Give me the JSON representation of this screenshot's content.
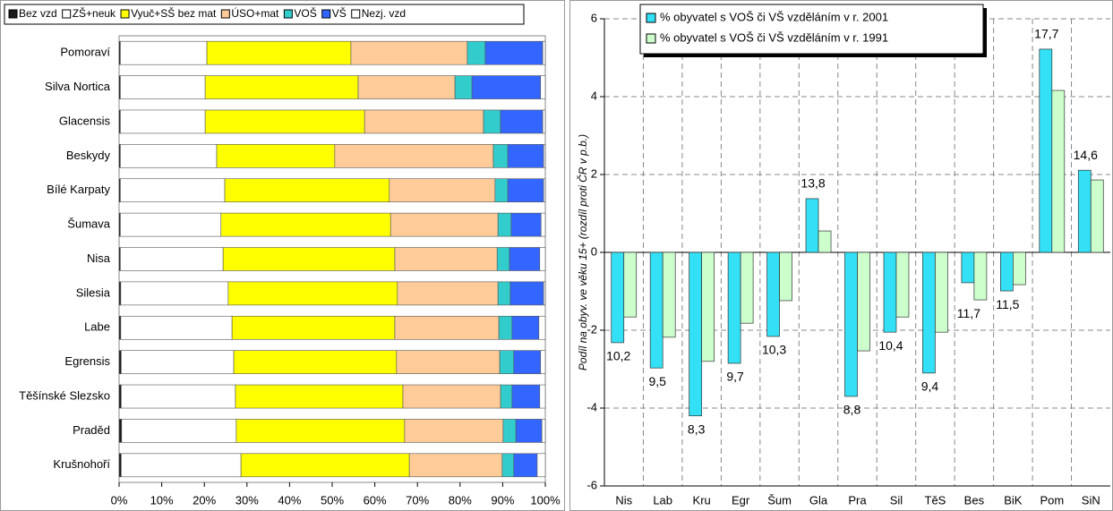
{
  "chart_data": [
    {
      "type": "barh",
      "categories": [
        "Pomoraví",
        "Silva Nortica",
        "Glacensis",
        "Beskydy",
        "Bílé Karpaty",
        "Šumava",
        "Nisa",
        "Silesia",
        "Labe",
        "Egrensis",
        "Těšínské Slezsko",
        "Praděd",
        "Krušnohoří"
      ],
      "series": [
        {
          "name": "Bez vzd",
          "color": "#1a1a1a",
          "values": [
            0.3,
            0.3,
            0.3,
            0.3,
            0.3,
            0.3,
            0.3,
            0.4,
            0.4,
            0.5,
            0.5,
            0.6,
            0.5
          ]
        },
        {
          "name": "ZŠ+neuk",
          "color": "#ffffff",
          "values": [
            20.3,
            19.9,
            19.9,
            22.6,
            24.5,
            23.6,
            24.1,
            25.2,
            26.1,
            26.4,
            26.8,
            26.9,
            28.1
          ]
        },
        {
          "name": "Vyuč+SŠ bez mat",
          "color": "#ffff00",
          "values": [
            33.8,
            35.9,
            37.4,
            27.7,
            38.6,
            39.8,
            40.3,
            39.7,
            38.2,
            38.2,
            39.3,
            39.5,
            39.5
          ]
        },
        {
          "name": "ÚSO+mat",
          "color": "#ffcc99",
          "values": [
            27.3,
            22.7,
            27.9,
            37.2,
            24.8,
            25.2,
            24.0,
            23.6,
            24.4,
            24.2,
            22.9,
            23.1,
            21.8
          ]
        },
        {
          "name": "VOŠ",
          "color": "#33cccc",
          "values": [
            4.2,
            4.0,
            4.0,
            3.4,
            3.0,
            3.1,
            2.9,
            2.9,
            3.1,
            3.3,
            2.7,
            3.0,
            2.7
          ]
        },
        {
          "name": "VŠ",
          "color": "#3366ff",
          "values": [
            13.5,
            16.1,
            9.9,
            8.4,
            8.4,
            7.0,
            7.1,
            7.8,
            6.3,
            6.3,
            6.5,
            6.1,
            5.5
          ]
        },
        {
          "name": "Nezj. vzd",
          "color": "#ffffff",
          "values": [
            0.6,
            1.1,
            0.6,
            0.4,
            0.4,
            1.0,
            1.3,
            0.4,
            1.5,
            1.1,
            1.3,
            0.8,
            1.9
          ]
        }
      ],
      "xlim": [
        0,
        100
      ],
      "xticks": [
        {
          "value": 0,
          "label": "0%"
        },
        {
          "value": 10,
          "label": "10%"
        },
        {
          "value": 20,
          "label": "20%"
        },
        {
          "value": 30,
          "label": "30%"
        },
        {
          "value": 40,
          "label": "40%"
        },
        {
          "value": 50,
          "label": "50%"
        },
        {
          "value": 60,
          "label": "60%"
        },
        {
          "value": 70,
          "label": "70%"
        },
        {
          "value": 80,
          "label": "80%"
        },
        {
          "value": 90,
          "label": "90%"
        },
        {
          "value": 100,
          "label": "100%"
        }
      ],
      "legend": "top"
    },
    {
      "type": "bar",
      "ylabel": "Podíl na obyv. ve věku 15+ (rozdíl proti ČR v p.b.)",
      "categories": [
        "Nis",
        "Lab",
        "Kru",
        "Egr",
        "Šum",
        "Gla",
        "Pra",
        "Sil",
        "TěS",
        "Bes",
        "BiK",
        "Pom",
        "SiN"
      ],
      "series": [
        {
          "name": "% obyvatel s VOŠ či VŠ vzděláním v r. 2001",
          "color": "#33e0f5",
          "values": [
            -2.32,
            -2.97,
            -4.2,
            -2.85,
            -2.16,
            1.38,
            -3.7,
            -2.05,
            -3.1,
            -0.78,
            -0.99,
            5.22,
            2.11
          ]
        },
        {
          "name": "% obyvatel s VOŠ či VŠ vzděláním v r. 1991",
          "color": "#ccffcc",
          "values": [
            -1.66,
            -2.18,
            -2.8,
            -1.82,
            -1.24,
            0.55,
            -2.53,
            -1.66,
            -2.05,
            -1.22,
            -0.83,
            4.16,
            1.86
          ]
        }
      ],
      "annotations": [
        "10,2",
        "9,5",
        "8,3",
        "9,7",
        "10,3",
        "13,8",
        "8,8",
        "10,4",
        "9,4",
        "11,7",
        "11,5",
        "17,7",
        "14,6"
      ],
      "ylim": [
        -6,
        6
      ],
      "yticks": [
        -6,
        -4,
        -2,
        0,
        2,
        4,
        6
      ],
      "grid": true,
      "legend": "top"
    }
  ]
}
